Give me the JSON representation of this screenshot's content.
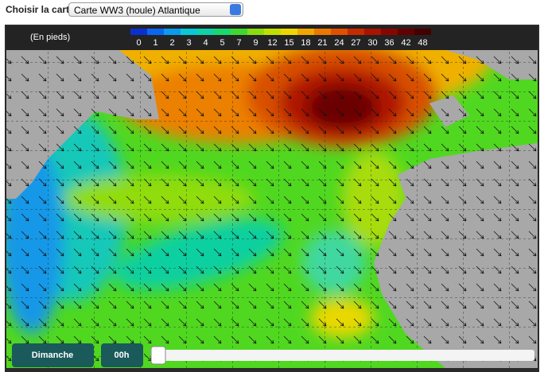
{
  "toolbar": {
    "label": "Choisir la carte",
    "selected_map": "Carte WW3 (houle) Atlantique"
  },
  "legend": {
    "unit": "(En pieds)",
    "scale": [
      {
        "label": "0",
        "color": "#0a2fd0"
      },
      {
        "label": "1",
        "color": "#0a66f0"
      },
      {
        "label": "2",
        "color": "#0a9af0"
      },
      {
        "label": "3",
        "color": "#08c8d8"
      },
      {
        "label": "4",
        "color": "#10d0a8"
      },
      {
        "label": "5",
        "color": "#18d870"
      },
      {
        "label": "7",
        "color": "#40d830"
      },
      {
        "label": "9",
        "color": "#88dc10"
      },
      {
        "label": "12",
        "color": "#c0e000"
      },
      {
        "label": "15",
        "color": "#ecd800"
      },
      {
        "label": "18",
        "color": "#f0a800"
      },
      {
        "label": "21",
        "color": "#ec7800"
      },
      {
        "label": "24",
        "color": "#e05000"
      },
      {
        "label": "27",
        "color": "#c82a00"
      },
      {
        "label": "30",
        "color": "#a81400"
      },
      {
        "label": "36",
        "color": "#880600"
      },
      {
        "label": "42",
        "color": "#640000"
      },
      {
        "label": "48",
        "color": "#440000"
      }
    ]
  },
  "controls": {
    "day": "Dimanche",
    "hour": "00h"
  }
}
